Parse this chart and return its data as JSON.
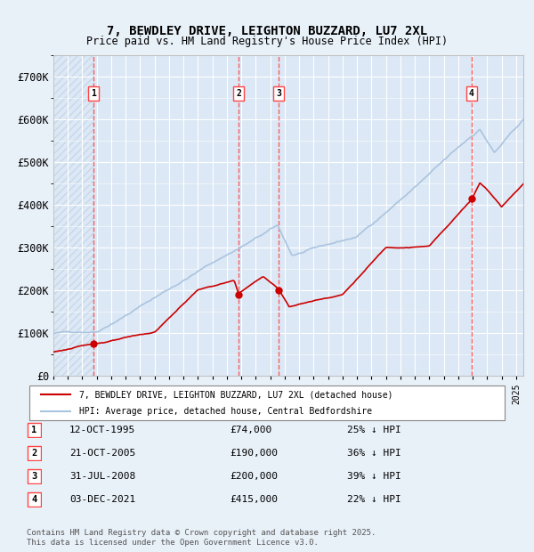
{
  "title_line1": "7, BEWDLEY DRIVE, LEIGHTON BUZZARD, LU7 2XL",
  "title_line2": "Price paid vs. HM Land Registry's House Price Index (HPI)",
  "ylabel": "",
  "xlabel": "",
  "ylim": [
    0,
    750000
  ],
  "yticks": [
    0,
    100000,
    200000,
    300000,
    400000,
    500000,
    600000,
    700000
  ],
  "ytick_labels": [
    "£0",
    "£100K",
    "£200K",
    "£300K",
    "£400K",
    "£500K",
    "£600K",
    "£700K"
  ],
  "hpi_color": "#aac4e0",
  "price_color": "#cc0000",
  "marker_color": "#cc0000",
  "vline_color": "#ff4444",
  "bg_color": "#e8f0f8",
  "plot_bg": "#dce8f5",
  "hatch_color": "#c8d8e8",
  "grid_color": "#ffffff",
  "purchases": [
    {
      "date_num": 1995.78,
      "price": 74000,
      "label": "1",
      "hpi_pct": 25
    },
    {
      "date_num": 2005.8,
      "price": 190000,
      "label": "2",
      "hpi_pct": 36
    },
    {
      "date_num": 2008.58,
      "price": 200000,
      "label": "3",
      "hpi_pct": 39
    },
    {
      "date_num": 2021.92,
      "price": 415000,
      "label": "4",
      "hpi_pct": 22
    }
  ],
  "legend_entries": [
    {
      "label": "7, BEWDLEY DRIVE, LEIGHTON BUZZARD, LU7 2XL (detached house)",
      "color": "#cc0000"
    },
    {
      "label": "HPI: Average price, detached house, Central Bedfordshire",
      "color": "#aac4e0"
    }
  ],
  "table_rows": [
    {
      "num": "1",
      "date": "12-OCT-1995",
      "price": "£74,000",
      "pct": "25% ↓ HPI"
    },
    {
      "num": "2",
      "date": "21-OCT-2005",
      "price": "£190,000",
      "pct": "36% ↓ HPI"
    },
    {
      "num": "3",
      "date": "31-JUL-2008",
      "price": "£200,000",
      "pct": "39% ↓ HPI"
    },
    {
      "num": "4",
      "date": "03-DEC-2021",
      "price": "£415,000",
      "pct": "22% ↓ HPI"
    }
  ],
  "footnote": "Contains HM Land Registry data © Crown copyright and database right 2025.\nThis data is licensed under the Open Government Licence v3.0.",
  "xmin": 1993.0,
  "xmax": 2025.5,
  "hatch_xmax": 1995.78
}
